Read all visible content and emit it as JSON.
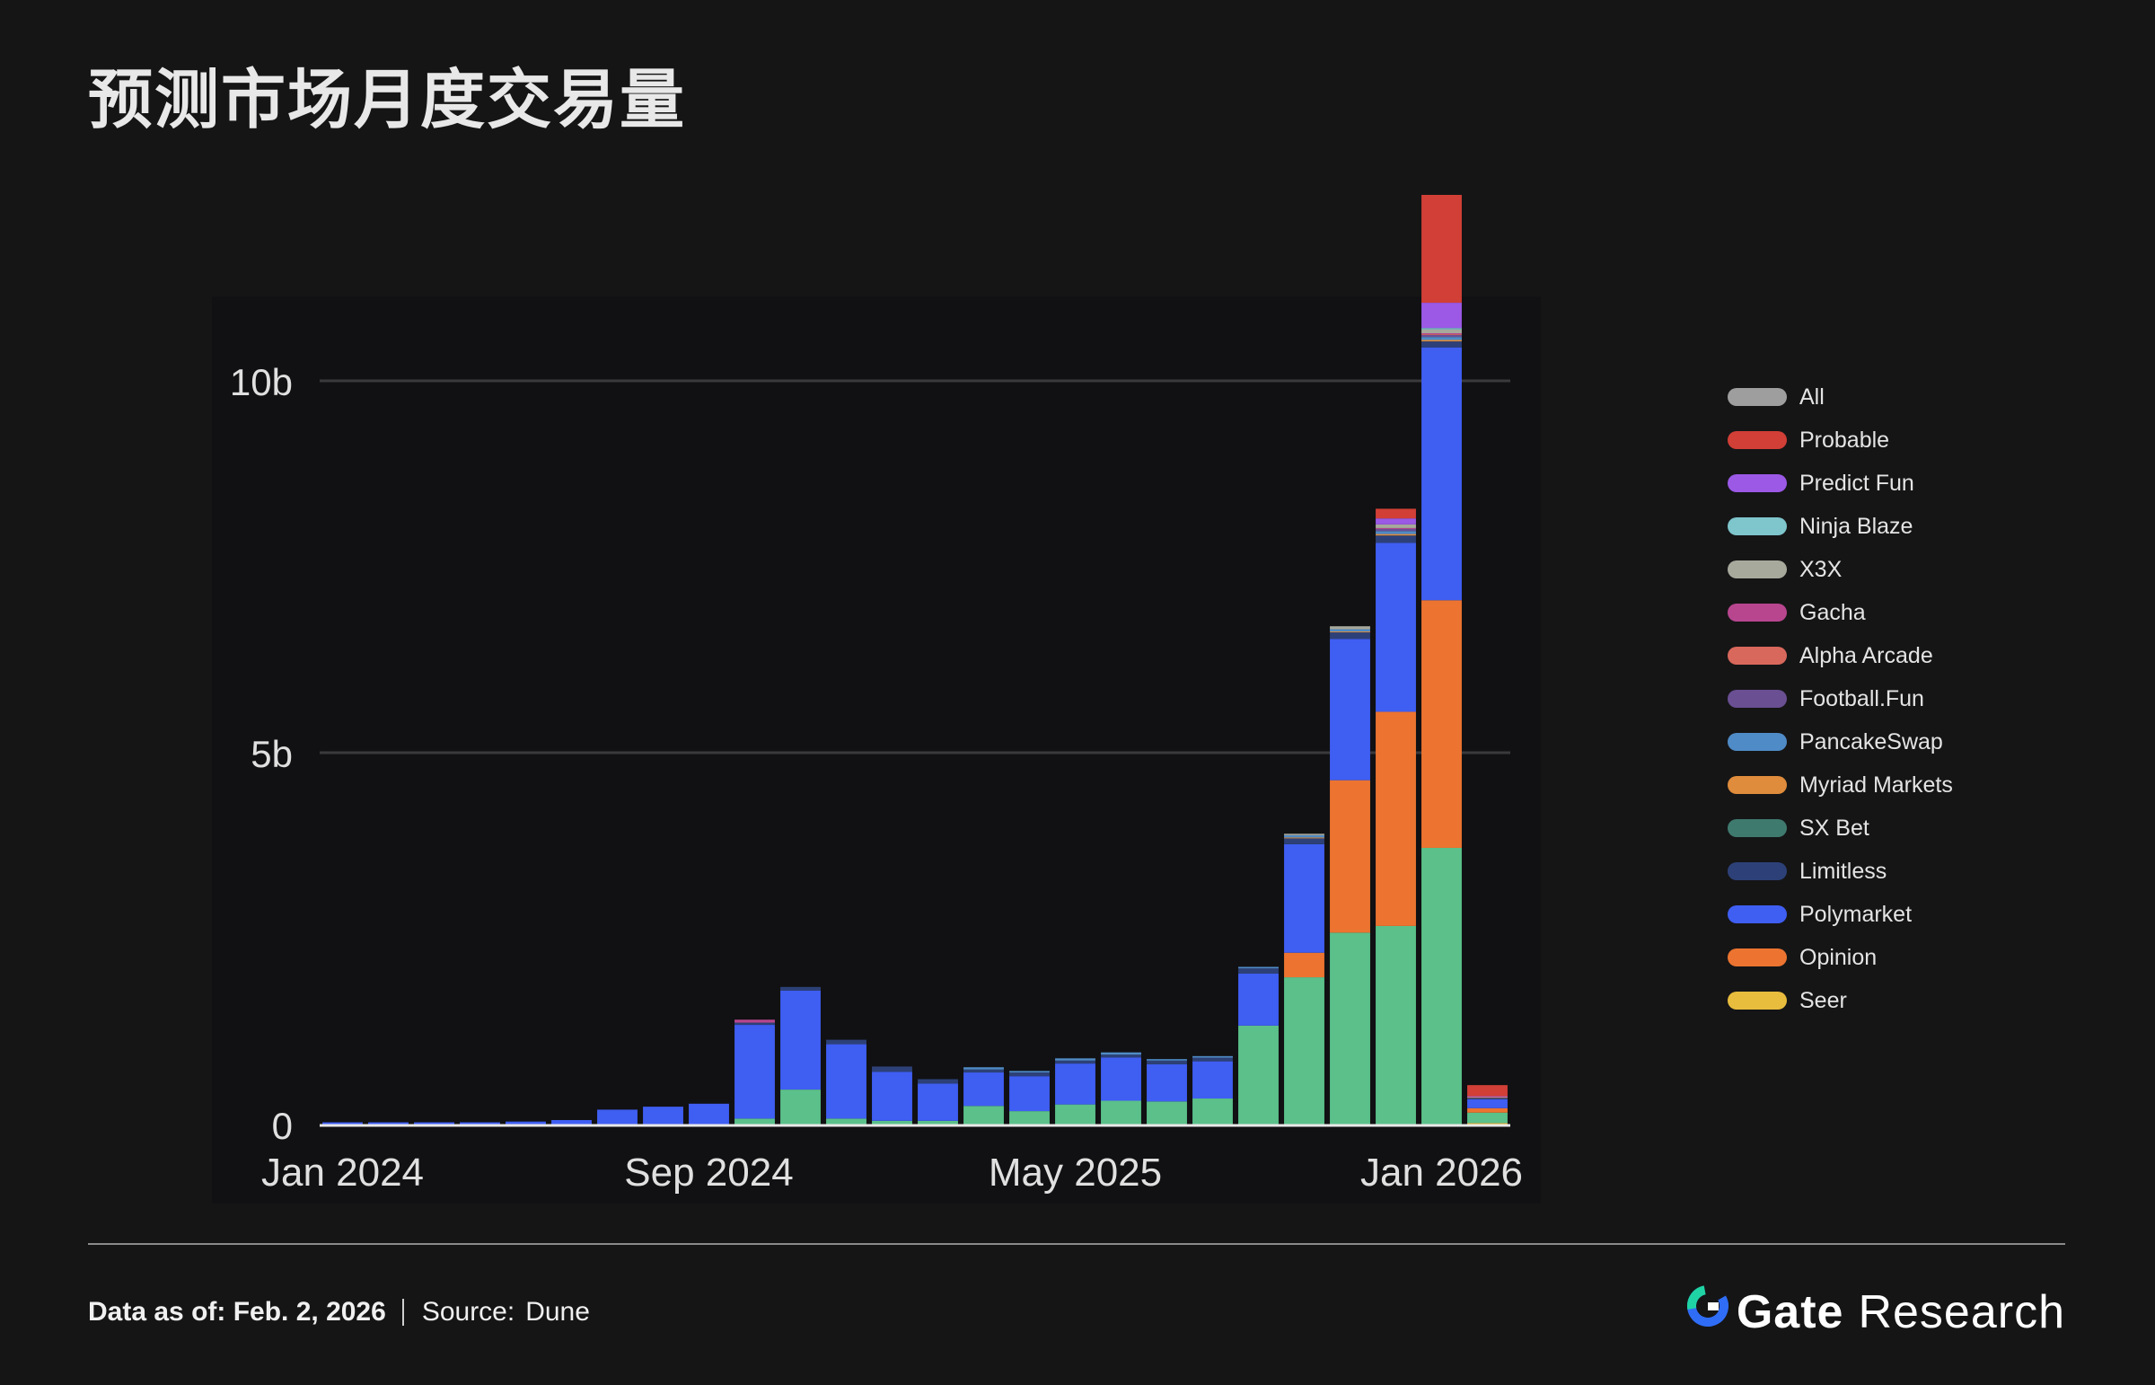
{
  "title": "预测市场月度交易量",
  "legend": [
    {
      "label": "All",
      "color": "#9e9e9e"
    },
    {
      "label": "Probable",
      "color": "#d13f36"
    },
    {
      "label": "Predict Fun",
      "color": "#9b59e6"
    },
    {
      "label": "Ninja Blaze",
      "color": "#7ec5cc"
    },
    {
      "label": "X3X",
      "color": "#a7a99c"
    },
    {
      "label": "Gacha",
      "color": "#b8468f"
    },
    {
      "label": "Alpha Arcade",
      "color": "#d9685c"
    },
    {
      "label": "Football.Fun",
      "color": "#6a4f93"
    },
    {
      "label": "PancakeSwap",
      "color": "#4f8bc6"
    },
    {
      "label": "Myriad Markets",
      "color": "#df8c3c"
    },
    {
      "label": "SX Bet",
      "color": "#3f7a6e"
    },
    {
      "label": "Limitless",
      "color": "#2d4178"
    },
    {
      "label": "Polymarket",
      "color": "#3f5ef2"
    },
    {
      "label": "Opinion",
      "color": "#ec7430"
    },
    {
      "label": "Seer",
      "color": "#e8bc3d"
    }
  ],
  "chart_data": {
    "type": "bar",
    "stacked": true,
    "title": "预测市场月度交易量",
    "xlabel": "",
    "ylabel": "",
    "ylim": [
      0,
      12.5
    ],
    "y_unit": "b",
    "yticks": [
      {
        "v": 0,
        "label": "0"
      },
      {
        "v": 5,
        "label": "5b"
      },
      {
        "v": 10,
        "label": "10b"
      }
    ],
    "xticks": [
      {
        "i": 0,
        "label": "Jan 2024"
      },
      {
        "i": 8,
        "label": "Sep 2024"
      },
      {
        "i": 16,
        "label": "May 2025"
      },
      {
        "i": 24,
        "label": "Jan 2026"
      }
    ],
    "grid": true,
    "legend_position": "right",
    "categories": [
      "Jan 2024",
      "Feb 2024",
      "Mar 2024",
      "Apr 2024",
      "May 2024",
      "Jun 2024",
      "Jul 2024",
      "Aug 2024",
      "Sep 2024",
      "Oct 2024",
      "Nov 2024",
      "Dec 2024",
      "Jan 2025",
      "Feb 2025",
      "Mar 2025",
      "Apr 2025",
      "May 2025",
      "Jun 2025",
      "Jul 2025",
      "Aug 2025",
      "Sep 2025",
      "Oct 2025",
      "Nov 2025",
      "Dec 2025",
      "Jan 2026",
      "Feb 2026"
    ],
    "series": [
      {
        "name": "Seer",
        "color": "#e8bc3d",
        "values": [
          0,
          0,
          0,
          0,
          0,
          0,
          0,
          0,
          0,
          0,
          0,
          0,
          0,
          0,
          0,
          0,
          0,
          0,
          0,
          0,
          0,
          0,
          0,
          0,
          0,
          0.02
        ]
      },
      {
        "name": "SX Bet",
        "color": "#5bc08a",
        "values": [
          0,
          0,
          0,
          0,
          0,
          0,
          0,
          0,
          0,
          0.08,
          0.47,
          0.08,
          0.05,
          0.05,
          0.25,
          0.18,
          0.27,
          0.32,
          0.31,
          0.35,
          1.33,
          1.98,
          2.58,
          2.67,
          3.72,
          0.14
        ]
      },
      {
        "name": "Opinion",
        "color": "#ec7430",
        "values": [
          0,
          0,
          0,
          0,
          0,
          0,
          0,
          0,
          0,
          0,
          0,
          0,
          0,
          0,
          0,
          0,
          0,
          0,
          0,
          0,
          0,
          0.33,
          2.05,
          2.88,
          3.33,
          0.06
        ]
      },
      {
        "name": "Polymarket",
        "color": "#3f5ef2",
        "values": [
          0.03,
          0.03,
          0.03,
          0.03,
          0.04,
          0.06,
          0.2,
          0.24,
          0.28,
          1.26,
          1.33,
          1.0,
          0.66,
          0.5,
          0.45,
          0.47,
          0.55,
          0.58,
          0.5,
          0.5,
          0.7,
          1.46,
          1.9,
          2.27,
          3.4,
          0.12
        ]
      },
      {
        "name": "Limitless",
        "color": "#2d4178",
        "values": [
          0,
          0,
          0,
          0,
          0,
          0,
          0,
          0,
          0,
          0.03,
          0.05,
          0.06,
          0.07,
          0.06,
          0.04,
          0.05,
          0.04,
          0.04,
          0.05,
          0.05,
          0.07,
          0.08,
          0.09,
          0.1,
          0.08,
          0.02
        ]
      },
      {
        "name": "Myriad Markets",
        "color": "#df8c3c",
        "values": [
          0,
          0,
          0,
          0,
          0,
          0,
          0,
          0,
          0,
          0,
          0,
          0,
          0,
          0,
          0,
          0,
          0,
          0,
          0,
          0,
          0,
          0.01,
          0.01,
          0.02,
          0.02,
          0.01
        ]
      },
      {
        "name": "PancakeSwap",
        "color": "#4f8bc6",
        "values": [
          0,
          0,
          0,
          0,
          0,
          0,
          0,
          0,
          0,
          0,
          0,
          0,
          0,
          0,
          0.03,
          0.02,
          0.03,
          0.03,
          0.02,
          0.02,
          0.02,
          0.03,
          0.03,
          0.04,
          0.04,
          0
        ]
      },
      {
        "name": "Football.Fun",
        "color": "#6a4f93",
        "values": [
          0,
          0,
          0,
          0,
          0,
          0,
          0,
          0,
          0,
          0,
          0,
          0,
          0,
          0,
          0,
          0,
          0,
          0,
          0,
          0,
          0,
          0,
          0,
          0.03,
          0.03,
          0
        ]
      },
      {
        "name": "Alpha Arcade",
        "color": "#d9685c",
        "values": [
          0,
          0,
          0,
          0,
          0,
          0,
          0,
          0,
          0,
          0,
          0,
          0,
          0,
          0,
          0,
          0,
          0,
          0,
          0,
          0,
          0,
          0,
          0,
          0,
          0.01,
          0
        ]
      },
      {
        "name": "Gacha",
        "color": "#b8468f",
        "values": [
          0,
          0,
          0,
          0,
          0,
          0,
          0,
          0,
          0,
          0.04,
          0,
          0,
          0,
          0,
          0,
          0,
          0,
          0,
          0,
          0,
          0,
          0,
          0,
          0.01,
          0.01,
          0
        ]
      },
      {
        "name": "X3X",
        "color": "#a7a99c",
        "values": [
          0,
          0,
          0,
          0,
          0,
          0,
          0,
          0,
          0,
          0,
          0,
          0,
          0,
          0,
          0,
          0,
          0,
          0,
          0,
          0,
          0,
          0.02,
          0.04,
          0.05,
          0.05,
          0
        ]
      },
      {
        "name": "Ninja Blaze",
        "color": "#7ec5cc",
        "values": [
          0,
          0,
          0,
          0,
          0,
          0,
          0,
          0,
          0,
          0,
          0,
          0,
          0,
          0,
          0,
          0,
          0,
          0,
          0,
          0,
          0,
          0,
          0,
          0,
          0.02,
          0
        ]
      },
      {
        "name": "Predict Fun",
        "color": "#9b59e6",
        "values": [
          0,
          0,
          0,
          0,
          0,
          0,
          0,
          0,
          0,
          0,
          0,
          0,
          0,
          0,
          0,
          0,
          0,
          0,
          0,
          0,
          0,
          0,
          0,
          0.08,
          0.34,
          0.01
        ]
      },
      {
        "name": "Probable",
        "color": "#d13f36",
        "values": [
          0,
          0,
          0,
          0,
          0,
          0,
          0,
          0,
          0,
          0,
          0,
          0,
          0,
          0,
          0,
          0,
          0,
          0,
          0,
          0,
          0,
          0,
          0,
          0.13,
          1.45,
          0.15
        ]
      }
    ]
  },
  "footer": {
    "as_of": "Data as of: Feb. 2, 2026",
    "source_label": "Source:",
    "source": "Dune"
  },
  "brand": {
    "gate": "Gate",
    "research": "Research"
  }
}
